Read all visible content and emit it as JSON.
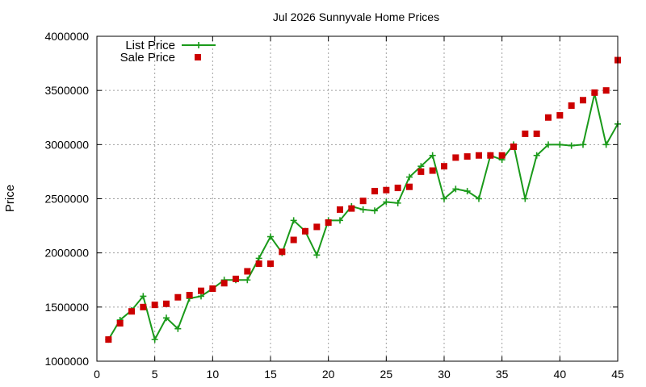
{
  "chart_data": {
    "type": "line",
    "title": "Jul 2026 Sunnyvale Home Prices",
    "xlabel": "",
    "ylabel": "Price",
    "xlim": [
      0,
      45
    ],
    "ylim": [
      1000000,
      4000000
    ],
    "xticks": [
      0,
      5,
      10,
      15,
      20,
      25,
      30,
      35,
      40,
      45
    ],
    "yticks": [
      1000000,
      1500000,
      2000000,
      2500000,
      3000000,
      3500000,
      4000000
    ],
    "grid": true,
    "legend_position": "top-left",
    "x": [
      1,
      2,
      3,
      4,
      5,
      6,
      7,
      8,
      9,
      10,
      11,
      12,
      13,
      14,
      15,
      16,
      17,
      18,
      19,
      20,
      21,
      22,
      23,
      24,
      25,
      26,
      27,
      28,
      29,
      30,
      31,
      32,
      33,
      34,
      35,
      36,
      37,
      38,
      39,
      40,
      41,
      42,
      43,
      44,
      45
    ],
    "series": [
      {
        "name": "List Price",
        "style": "line+cross",
        "color": "#1a9a1a",
        "values": [
          1200000,
          1380000,
          1470000,
          1600000,
          1200000,
          1400000,
          1300000,
          1580000,
          1600000,
          1670000,
          1750000,
          1750000,
          1750000,
          1950000,
          2150000,
          2000000,
          2300000,
          2200000,
          1980000,
          2300000,
          2300000,
          2430000,
          2400000,
          2390000,
          2470000,
          2460000,
          2700000,
          2800000,
          2900000,
          2500000,
          2590000,
          2570000,
          2500000,
          2900000,
          2860000,
          3000000,
          2500000,
          2900000,
          3000000,
          3000000,
          2990000,
          3000000,
          3470000,
          3000000,
          3190000
        ]
      },
      {
        "name": "Sale Price",
        "style": "square",
        "color": "#cc0000",
        "values": [
          1200000,
          1350000,
          1460000,
          1500000,
          1520000,
          1530000,
          1590000,
          1610000,
          1650000,
          1670000,
          1720000,
          1760000,
          1830000,
          1900000,
          1900000,
          2010000,
          2120000,
          2200000,
          2240000,
          2280000,
          2400000,
          2410000,
          2480000,
          2570000,
          2580000,
          2600000,
          2610000,
          2750000,
          2760000,
          2800000,
          2880000,
          2890000,
          2900000,
          2900000,
          2900000,
          2980000,
          3100000,
          3100000,
          3250000,
          3270000,
          3360000,
          3410000,
          3480000,
          3500000,
          3780000
        ]
      }
    ]
  }
}
